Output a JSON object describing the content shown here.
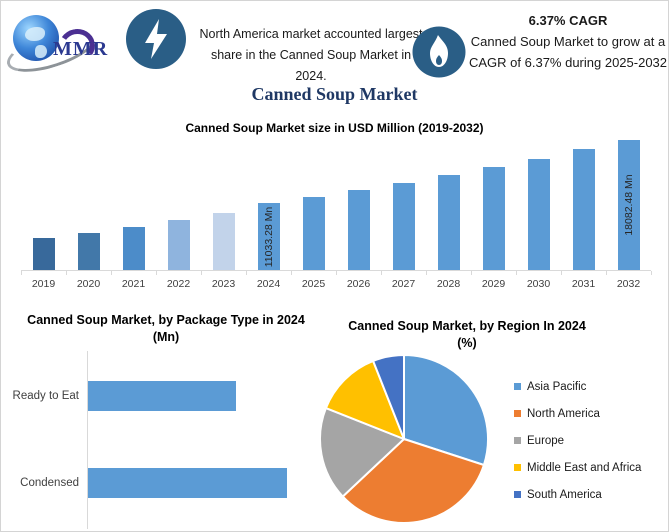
{
  "header": {
    "logo_text": "MMR",
    "left_note": "North America market accounted largest share in the Canned Soup Market in 2024.",
    "cagr_title": "6.37% CAGR",
    "cagr_text": "Canned Soup Market to grow at a CAGR of 6.37% during 2025-2032",
    "main_title": "Canned Soup Market",
    "icon_circle_color": "#2a5e86"
  },
  "chart_data": [
    {
      "type": "bar",
      "title": "Canned Soup Market size in USD Million (2019-2032)",
      "ylabel": "USD Million",
      "categories": [
        "2019",
        "2020",
        "2021",
        "2022",
        "2023",
        "2024",
        "2025",
        "2026",
        "2027",
        "2028",
        "2029",
        "2030",
        "2031",
        "2032"
      ],
      "values": [
        7180,
        7730,
        8390,
        9160,
        9930,
        11033.28,
        11736.1,
        12483.69,
        13278.9,
        14124.77,
        15024.52,
        15981.58,
        16999.61,
        18082.48
      ],
      "data_labels": [
        "",
        "",
        "",
        "",
        "",
        "11033.28 Mn",
        "",
        "",
        "",
        "",
        "",
        "",
        "",
        "18082.48 Mn"
      ],
      "bar_colors": [
        "#38699b",
        "#4278a9",
        "#4c8cc9",
        "#8fb4de",
        "#c2d3ea",
        "#5b9bd5",
        "#5b9bd5",
        "#5b9bd5",
        "#5b9bd5",
        "#5b9bd5",
        "#5b9bd5",
        "#5b9bd5",
        "#5b9bd5",
        "#5b9bd5"
      ],
      "axis_range": [
        3600,
        18500
      ],
      "grid": false,
      "legend": false
    },
    {
      "type": "bar-horizontal",
      "title": "Canned Soup Market, by Package Type in 2024 (Mn)",
      "categories": [
        "Ready to Eat",
        "Condensed"
      ],
      "values": [
        4600,
        6200
      ],
      "xlim": [
        0,
        7600
      ],
      "bar_color": "#5b9bd5",
      "grid": false
    },
    {
      "type": "pie",
      "title": "Canned Soup Market, by Region In 2024 (%)",
      "start_angle_deg": 0,
      "direction": "clockwise",
      "legend_position": "right",
      "slices": [
        {
          "label": "Asia Pacific",
          "value": 30,
          "color": "#5b9bd5"
        },
        {
          "label": "North America",
          "value": 33,
          "color": "#ed7d31"
        },
        {
          "label": "Europe",
          "value": 18,
          "color": "#a5a5a5"
        },
        {
          "label": "Middle East and Africa",
          "value": 13,
          "color": "#ffc000"
        },
        {
          "label": "South America",
          "value": 6,
          "color": "#4472c4"
        }
      ]
    }
  ]
}
